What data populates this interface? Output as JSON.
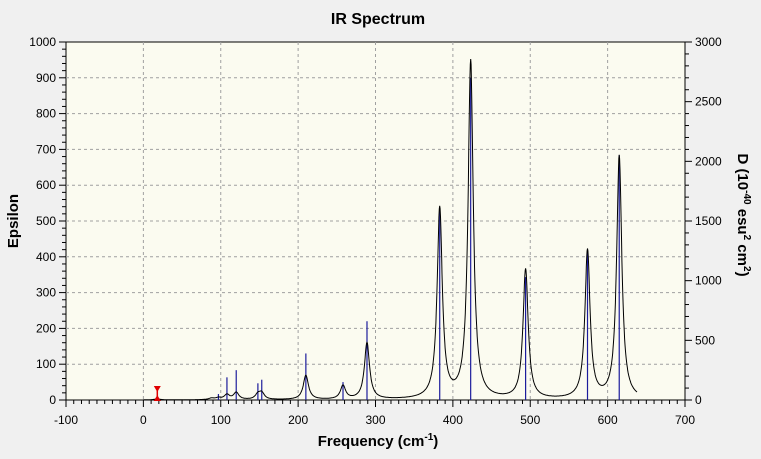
{
  "window": {
    "background": "#f0f0f0"
  },
  "chart_data": {
    "type": "line",
    "title": "IR Spectrum",
    "xlabel": {
      "text": "Frequency (cm",
      "sup": "-1",
      "close": ")"
    },
    "ylabel": "Epsilon",
    "y2label": {
      "p1": "D (10",
      "sup1": "-40",
      "p2": " esu",
      "sup2": "2",
      "p3": " cm",
      "sup3": "2",
      "p4": ")"
    },
    "xlim": [
      -100,
      700
    ],
    "ylim": [
      0,
      1000
    ],
    "y2lim": [
      0,
      3000
    ],
    "xticks": [
      -100,
      0,
      100,
      200,
      300,
      400,
      500,
      600,
      700
    ],
    "yticks": [
      0,
      100,
      200,
      300,
      400,
      500,
      600,
      700,
      800,
      900,
      1000
    ],
    "y2ticks": [
      0,
      500,
      1000,
      1500,
      2000,
      2500,
      3000
    ],
    "grid": true,
    "plot_background": "#fbfbf0",
    "spectrum_color": "#000000",
    "stick_color": "#1c1c9c",
    "marker_color": "#e00000",
    "spectrum_range": [
      0,
      638
    ],
    "linewidth_fwhm": 8,
    "series": [
      {
        "name": "Epsilon",
        "axis": "left",
        "peaks": [
          {
            "x": 18,
            "y": 3
          },
          {
            "x": 88,
            "y": 4
          },
          {
            "x": 97,
            "y": 5
          },
          {
            "x": 108,
            "y": 14
          },
          {
            "x": 120,
            "y": 20
          },
          {
            "x": 148,
            "y": 14
          },
          {
            "x": 153,
            "y": 18
          },
          {
            "x": 210,
            "y": 68
          },
          {
            "x": 258,
            "y": 38
          },
          {
            "x": 289,
            "y": 158
          },
          {
            "x": 383,
            "y": 532
          },
          {
            "x": 423,
            "y": 945
          },
          {
            "x": 494,
            "y": 362
          },
          {
            "x": 574,
            "y": 415
          },
          {
            "x": 615,
            "y": 680
          }
        ]
      },
      {
        "name": "D",
        "axis": "right",
        "sticks": [
          {
            "x": 18,
            "y": 12
          },
          {
            "x": 97,
            "y": 50
          },
          {
            "x": 108,
            "y": 190
          },
          {
            "x": 120,
            "y": 250
          },
          {
            "x": 148,
            "y": 140
          },
          {
            "x": 153,
            "y": 170
          },
          {
            "x": 210,
            "y": 390
          },
          {
            "x": 258,
            "y": 150
          },
          {
            "x": 289,
            "y": 660
          },
          {
            "x": 383,
            "y": 1600
          },
          {
            "x": 423,
            "y": 2700
          },
          {
            "x": 494,
            "y": 1030
          },
          {
            "x": 574,
            "y": 1250
          },
          {
            "x": 615,
            "y": 2050
          }
        ]
      }
    ],
    "marker": {
      "x": 18
    }
  }
}
